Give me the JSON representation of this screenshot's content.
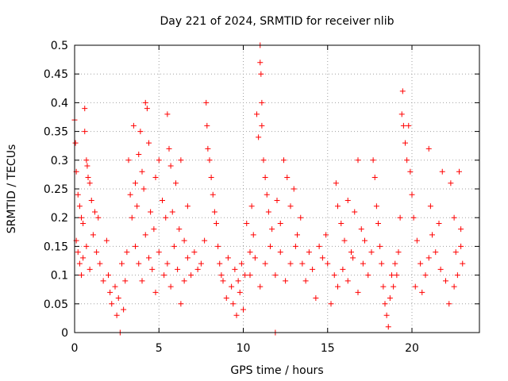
{
  "chart_data": {
    "type": "scatter",
    "title": "Day 221 of 2024, SRMTID for receiver nlib",
    "xlabel": "GPS time / hours",
    "ylabel": "SRMTID / TECUs",
    "xlim": [
      0,
      24
    ],
    "ylim": [
      0,
      0.5
    ],
    "x_ticks": [
      0,
      5,
      10,
      15,
      20
    ],
    "y_ticks": [
      0,
      0.05,
      0.1,
      0.15,
      0.2,
      0.25,
      0.3,
      0.35,
      0.4,
      0.45,
      0.5
    ],
    "x_tick_labels": [
      "0",
      "5",
      "10",
      "15",
      "20"
    ],
    "y_tick_labels": [
      "0",
      "0.05",
      "0.1",
      "0.15",
      "0.2",
      "0.25",
      "0.3",
      "0.35",
      "0.4",
      "0.45",
      "0.5"
    ],
    "grid": true,
    "marker": "+",
    "series": [
      {
        "color": "#ff0000",
        "points": [
          [
            0.0,
            0.37
          ],
          [
            0.05,
            0.33
          ],
          [
            0.1,
            0.28
          ],
          [
            0.2,
            0.24
          ],
          [
            0.3,
            0.22
          ],
          [
            0.4,
            0.2
          ],
          [
            0.5,
            0.19
          ],
          [
            0.6,
            0.39
          ],
          [
            0.6,
            0.35
          ],
          [
            0.7,
            0.3
          ],
          [
            0.75,
            0.29
          ],
          [
            0.8,
            0.27
          ],
          [
            0.9,
            0.26
          ],
          [
            1.0,
            0.23
          ],
          [
            1.2,
            0.21
          ],
          [
            1.4,
            0.2
          ],
          [
            0.1,
            0.16
          ],
          [
            0.2,
            0.14
          ],
          [
            0.3,
            0.12
          ],
          [
            0.4,
            0.1
          ],
          [
            0.5,
            0.13
          ],
          [
            0.7,
            0.15
          ],
          [
            0.9,
            0.11
          ],
          [
            1.1,
            0.17
          ],
          [
            1.3,
            0.14
          ],
          [
            1.5,
            0.12
          ],
          [
            1.7,
            0.09
          ],
          [
            1.9,
            0.16
          ],
          [
            2.0,
            0.1
          ],
          [
            2.1,
            0.07
          ],
          [
            2.2,
            0.05
          ],
          [
            2.4,
            0.08
          ],
          [
            2.5,
            0.03
          ],
          [
            2.6,
            0.06
          ],
          [
            2.7,
            0.0
          ],
          [
            2.8,
            0.12
          ],
          [
            2.9,
            0.04
          ],
          [
            3.0,
            0.09
          ],
          [
            3.1,
            0.14
          ],
          [
            3.2,
            0.3
          ],
          [
            3.3,
            0.24
          ],
          [
            3.4,
            0.2
          ],
          [
            3.5,
            0.36
          ],
          [
            3.6,
            0.26
          ],
          [
            3.7,
            0.22
          ],
          [
            3.8,
            0.31
          ],
          [
            3.9,
            0.35
          ],
          [
            4.0,
            0.28
          ],
          [
            4.1,
            0.25
          ],
          [
            4.2,
            0.4
          ],
          [
            4.3,
            0.39
          ],
          [
            4.4,
            0.33
          ],
          [
            4.5,
            0.21
          ],
          [
            4.7,
            0.18
          ],
          [
            4.8,
            0.27
          ],
          [
            5.0,
            0.3
          ],
          [
            3.6,
            0.15
          ],
          [
            3.8,
            0.12
          ],
          [
            4.0,
            0.09
          ],
          [
            4.2,
            0.17
          ],
          [
            4.4,
            0.13
          ],
          [
            4.6,
            0.11
          ],
          [
            4.8,
            0.07
          ],
          [
            5.0,
            0.14
          ],
          [
            5.2,
            0.23
          ],
          [
            5.4,
            0.2
          ],
          [
            5.5,
            0.38
          ],
          [
            5.6,
            0.32
          ],
          [
            5.7,
            0.29
          ],
          [
            5.8,
            0.21
          ],
          [
            6.0,
            0.26
          ],
          [
            6.2,
            0.18
          ],
          [
            6.3,
            0.3
          ],
          [
            6.5,
            0.16
          ],
          [
            6.7,
            0.22
          ],
          [
            5.3,
            0.1
          ],
          [
            5.5,
            0.12
          ],
          [
            5.7,
            0.08
          ],
          [
            5.9,
            0.15
          ],
          [
            6.1,
            0.11
          ],
          [
            6.3,
            0.05
          ],
          [
            6.5,
            0.09
          ],
          [
            6.7,
            0.13
          ],
          [
            6.9,
            0.1
          ],
          [
            7.1,
            0.14
          ],
          [
            7.3,
            0.11
          ],
          [
            7.5,
            0.12
          ],
          [
            7.7,
            0.16
          ],
          [
            7.8,
            0.4
          ],
          [
            7.85,
            0.36
          ],
          [
            7.9,
            0.32
          ],
          [
            8.0,
            0.3
          ],
          [
            8.1,
            0.27
          ],
          [
            8.2,
            0.24
          ],
          [
            8.3,
            0.21
          ],
          [
            8.4,
            0.19
          ],
          [
            8.5,
            0.15
          ],
          [
            8.6,
            0.12
          ],
          [
            8.7,
            0.1
          ],
          [
            8.8,
            0.09
          ],
          [
            9.0,
            0.06
          ],
          [
            9.1,
            0.13
          ],
          [
            9.3,
            0.08
          ],
          [
            9.4,
            0.05
          ],
          [
            9.5,
            0.11
          ],
          [
            9.6,
            0.03
          ],
          [
            9.7,
            0.09
          ],
          [
            9.8,
            0.07
          ],
          [
            9.9,
            0.12
          ],
          [
            10.0,
            0.04
          ],
          [
            10.1,
            0.1
          ],
          [
            10.2,
            0.19
          ],
          [
            10.4,
            0.14
          ],
          [
            10.5,
            0.22
          ],
          [
            10.6,
            0.17
          ],
          [
            10.8,
            0.38
          ],
          [
            10.9,
            0.34
          ],
          [
            11.0,
            0.5
          ],
          [
            11.0,
            0.47
          ],
          [
            11.05,
            0.45
          ],
          [
            11.1,
            0.4
          ],
          [
            11.1,
            0.36
          ],
          [
            11.2,
            0.3
          ],
          [
            11.3,
            0.27
          ],
          [
            11.4,
            0.24
          ],
          [
            11.5,
            0.21
          ],
          [
            11.7,
            0.18
          ],
          [
            11.9,
            0.0
          ],
          [
            12.0,
            0.23
          ],
          [
            12.2,
            0.19
          ],
          [
            12.4,
            0.3
          ],
          [
            12.6,
            0.27
          ],
          [
            12.8,
            0.22
          ],
          [
            13.0,
            0.25
          ],
          [
            13.2,
            0.17
          ],
          [
            13.4,
            0.2
          ],
          [
            10.4,
            0.1
          ],
          [
            10.7,
            0.13
          ],
          [
            11.0,
            0.08
          ],
          [
            11.3,
            0.12
          ],
          [
            11.6,
            0.15
          ],
          [
            11.9,
            0.1
          ],
          [
            12.2,
            0.14
          ],
          [
            12.5,
            0.09
          ],
          [
            12.8,
            0.12
          ],
          [
            13.1,
            0.15
          ],
          [
            13.5,
            0.12
          ],
          [
            13.7,
            0.09
          ],
          [
            13.9,
            0.14
          ],
          [
            14.1,
            0.11
          ],
          [
            14.3,
            0.06
          ],
          [
            14.5,
            0.15
          ],
          [
            14.7,
            0.13
          ],
          [
            14.9,
            0.17
          ],
          [
            15.0,
            0.12
          ],
          [
            15.2,
            0.05
          ],
          [
            15.4,
            0.1
          ],
          [
            15.5,
            0.26
          ],
          [
            15.6,
            0.22
          ],
          [
            15.8,
            0.19
          ],
          [
            16.0,
            0.16
          ],
          [
            16.2,
            0.23
          ],
          [
            16.4,
            0.14
          ],
          [
            16.6,
            0.21
          ],
          [
            16.8,
            0.3
          ],
          [
            17.0,
            0.18
          ],
          [
            17.2,
            0.16
          ],
          [
            15.6,
            0.08
          ],
          [
            15.9,
            0.11
          ],
          [
            16.2,
            0.09
          ],
          [
            16.5,
            0.13
          ],
          [
            16.8,
            0.07
          ],
          [
            17.1,
            0.12
          ],
          [
            17.4,
            0.1
          ],
          [
            17.6,
            0.14
          ],
          [
            17.7,
            0.3
          ],
          [
            17.8,
            0.27
          ],
          [
            17.9,
            0.22
          ],
          [
            18.0,
            0.19
          ],
          [
            18.1,
            0.15
          ],
          [
            18.2,
            0.12
          ],
          [
            18.3,
            0.08
          ],
          [
            18.4,
            0.05
          ],
          [
            18.5,
            0.03
          ],
          [
            18.6,
            0.01
          ],
          [
            18.7,
            0.06
          ],
          [
            18.8,
            0.1
          ],
          [
            18.9,
            0.08
          ],
          [
            19.0,
            0.12
          ],
          [
            19.1,
            0.1
          ],
          [
            19.2,
            0.14
          ],
          [
            19.3,
            0.2
          ],
          [
            19.4,
            0.38
          ],
          [
            19.45,
            0.42
          ],
          [
            19.5,
            0.36
          ],
          [
            19.6,
            0.33
          ],
          [
            19.7,
            0.3
          ],
          [
            19.8,
            0.36
          ],
          [
            19.9,
            0.28
          ],
          [
            20.0,
            0.24
          ],
          [
            20.1,
            0.2
          ],
          [
            20.3,
            0.16
          ],
          [
            20.5,
            0.12
          ],
          [
            20.6,
            0.07
          ],
          [
            20.8,
            0.1
          ],
          [
            21.0,
            0.32
          ],
          [
            21.1,
            0.22
          ],
          [
            21.2,
            0.17
          ],
          [
            21.4,
            0.14
          ],
          [
            21.6,
            0.19
          ],
          [
            21.8,
            0.28
          ],
          [
            22.0,
            0.09
          ],
          [
            22.2,
            0.05
          ],
          [
            22.3,
            0.26
          ],
          [
            22.5,
            0.2
          ],
          [
            22.6,
            0.14
          ],
          [
            22.7,
            0.1
          ],
          [
            22.8,
            0.28
          ],
          [
            22.9,
            0.18
          ],
          [
            23.0,
            0.12
          ],
          [
            22.5,
            0.08
          ],
          [
            22.9,
            0.15
          ],
          [
            21.7,
            0.11
          ],
          [
            21.0,
            0.13
          ],
          [
            20.2,
            0.08
          ]
        ]
      }
    ]
  }
}
